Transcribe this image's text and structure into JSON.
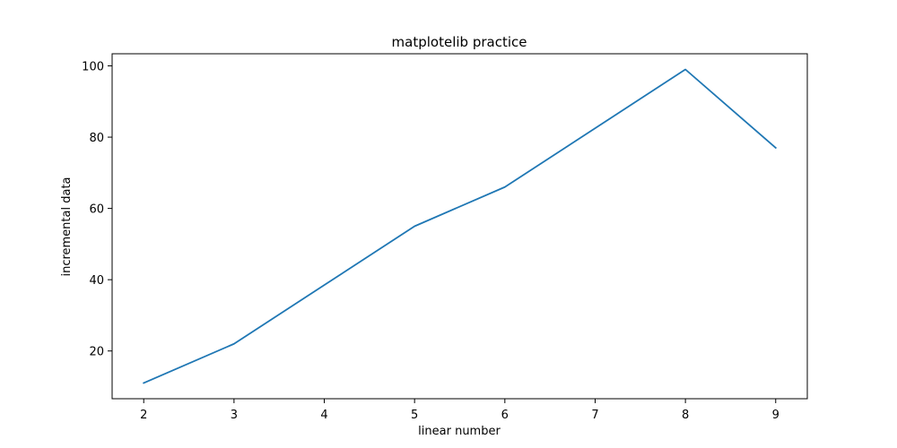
{
  "chart_data": {
    "type": "line",
    "title": "matplotelib practice",
    "xlabel": "linear number",
    "ylabel": "incremental data",
    "x": [
      2,
      3,
      4,
      5,
      6,
      7,
      8,
      9
    ],
    "series": [
      {
        "values": [
          11,
          22,
          38.5,
          55,
          66,
          82.5,
          99,
          77
        ],
        "color": "#1f77b4"
      }
    ],
    "xlim": [
      1.65,
      9.35
    ],
    "ylim": [
      6.6,
      103.4
    ],
    "xticks": [
      "2",
      "3",
      "4",
      "5",
      "6",
      "7",
      "8",
      "9"
    ],
    "yticks": [
      "20",
      "40",
      "60",
      "80",
      "100"
    ],
    "grid": false
  }
}
